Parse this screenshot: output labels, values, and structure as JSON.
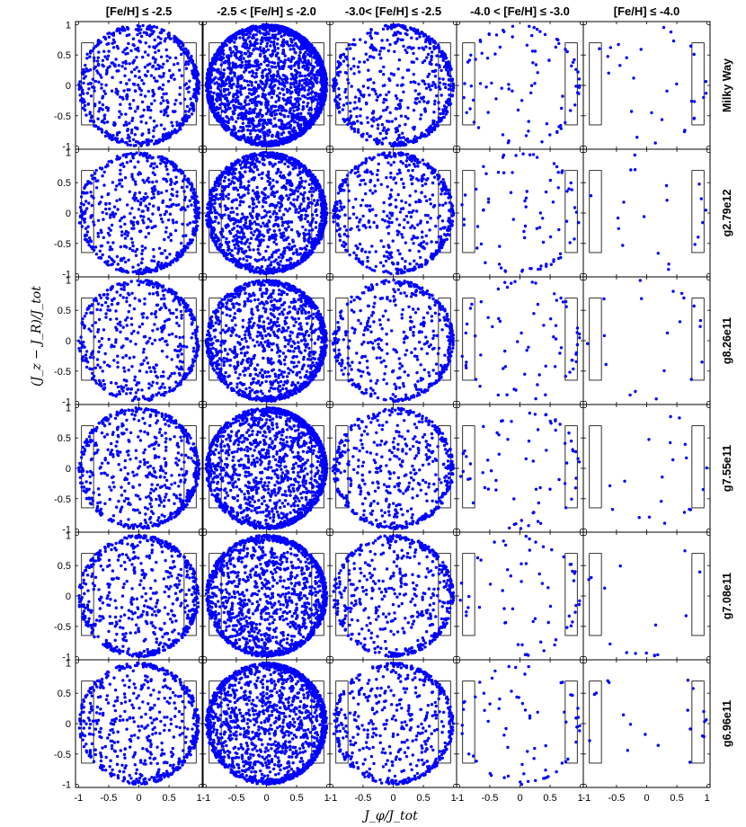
{
  "chart_data": {
    "type": "scatter",
    "layout": "grid of 6 rows x 5 columns, shared axes",
    "xlabel": "J_φ/J_tot",
    "ylabel": "(J_z − J_R)/J_tot",
    "xlim": [
      -1.05,
      1.05
    ],
    "ylim": [
      -1.05,
      1.05
    ],
    "xticks": [
      "-1",
      "-0.5",
      "0",
      "0.5",
      "1"
    ],
    "yticks": [
      "1",
      "0.5",
      "0",
      "-0.5",
      "-1"
    ],
    "grid": false,
    "marker_color": "#0000ff",
    "column_titles": [
      "[Fe/H] ≤ -2.5",
      "-2.5 < [Fe/H] ≤ -2.0",
      "-3.0< [Fe/H] ≤ -2.5",
      "-4.0 < [Fe/H] ≤ -3.0",
      "[Fe/H] ≤ -4.0"
    ],
    "row_labels": [
      "Milky Way",
      "g2.79e12",
      "g8.26e11",
      "g7.55e11",
      "g7.08e11",
      "g6.96e11"
    ],
    "selection_boxes": [
      {
        "x": [
          -0.95,
          -0.75
        ],
        "y": [
          -0.65,
          0.7
        ]
      },
      {
        "x": [
          0.75,
          0.95
        ],
        "y": [
          -0.65,
          0.7
        ]
      }
    ],
    "approx_point_counts": [
      [
        700,
        2400,
        650,
        90,
        30
      ],
      [
        650,
        1500,
        600,
        80,
        20
      ],
      [
        550,
        1300,
        500,
        70,
        20
      ],
      [
        650,
        1600,
        550,
        70,
        20
      ],
      [
        650,
        1500,
        550,
        60,
        15
      ],
      [
        600,
        1700,
        550,
        70,
        20
      ]
    ],
    "distribution_note": "points fill the unit disk x^2 + y^2 <= 1, denser near the rim and toward positive J_φ/J_tot"
  }
}
